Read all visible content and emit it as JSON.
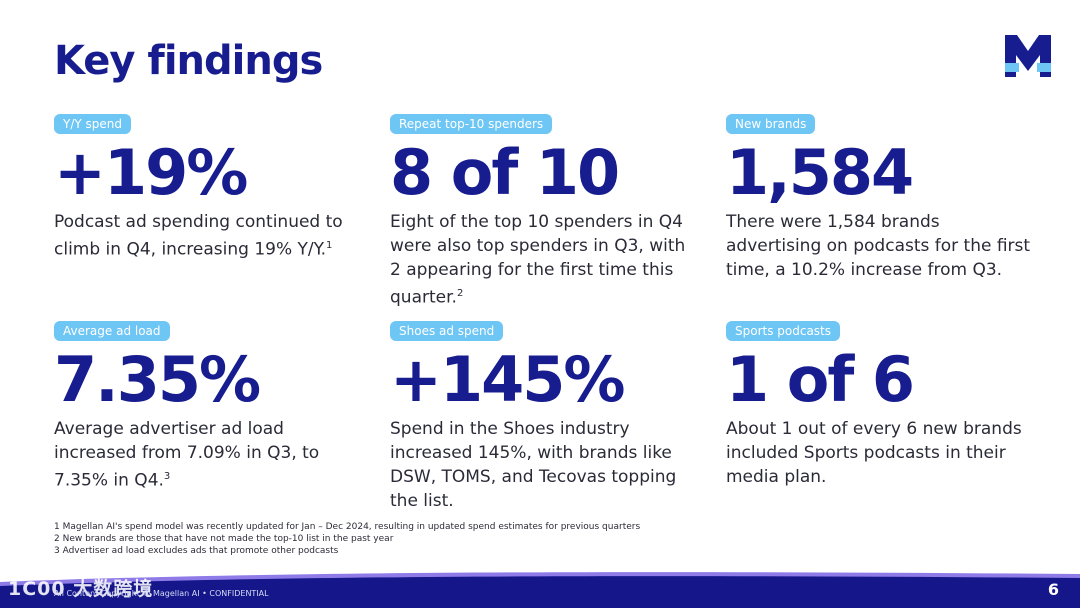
{
  "page": {
    "title": "Key findings",
    "page_number": "6",
    "copyright": "All Content Copyright © Magellan AI • CONFIDENTIAL",
    "watermark": "1C00 大数跨境",
    "logo_letter": "M"
  },
  "colors": {
    "title": "#171c8f",
    "tag_bg": "#6ec6f5",
    "footer": "#14168a",
    "footer_accent": "#8f7be8"
  },
  "findings": [
    {
      "tag": "Y/Y spend",
      "value": "+19%",
      "text": "Podcast ad spending continued to climb in Q4, increasing 19% Y/Y.",
      "sup": "1"
    },
    {
      "tag": "Repeat top-10 spenders",
      "value": "8 of 10",
      "text": "Eight of the top 10 spenders in Q4 were also top spenders in Q3, with 2 appearing for the first time this quarter.",
      "sup": "2"
    },
    {
      "tag": "New brands",
      "value": "1,584",
      "text": "There were 1,584 brands advertising on podcasts for the first time, a 10.2% increase from Q3.",
      "sup": ""
    },
    {
      "tag": "Average ad load",
      "value": "7.35%",
      "text": "Average advertiser ad load increased from 7.09% in Q3, to 7.35% in Q4.",
      "sup": "3"
    },
    {
      "tag": "Shoes ad spend",
      "value": "+145%",
      "text": "Spend in the Shoes industry increased 145%, with brands like DSW, TOMS, and Tecovas topping the list.",
      "sup": ""
    },
    {
      "tag": "Sports podcasts",
      "value": "1 of 6",
      "text": "About 1 out of every 6 new brands included Sports podcasts in their media plan.",
      "sup": ""
    }
  ],
  "footnotes": [
    "1 Magellan AI's spend model was recently updated for Jan – Dec 2024, resulting in updated spend estimates for previous quarters",
    "2 New brands are those that have not made the top-10 list in the past year",
    "3 Advertiser ad load excludes ads that promote other podcasts"
  ]
}
